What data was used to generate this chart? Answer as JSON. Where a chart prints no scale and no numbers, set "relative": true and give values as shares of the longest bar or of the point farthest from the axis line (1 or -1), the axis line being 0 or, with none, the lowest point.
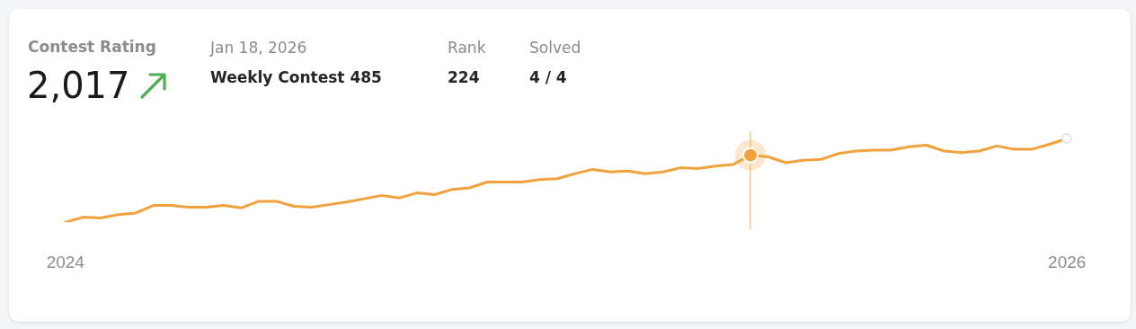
{
  "chart_data": {
    "type": "line",
    "title": "Contest Rating",
    "annotations": [
      "2,017",
      "Jan 18, 2026",
      "Weekly Contest 485",
      "Rank",
      "224",
      "Solved",
      "4 / 4"
    ],
    "categories": [
      "2024",
      null,
      null,
      null,
      null,
      null,
      null,
      null,
      null,
      null,
      null,
      null,
      null,
      null,
      null,
      null,
      null,
      null,
      null,
      null,
      null,
      null,
      null,
      null,
      null,
      null,
      null,
      null,
      null,
      null,
      null,
      null,
      null,
      null,
      null,
      null,
      null,
      null,
      null,
      null,
      null,
      null,
      null,
      null,
      null,
      null,
      null,
      null,
      null,
      null,
      null,
      null,
      null,
      null,
      null,
      null,
      null,
      "2026"
    ],
    "relative": true,
    "series": [
      {
        "color": "#f2a23c",
        "values": [
          0,
          0.06,
          0.05,
          0.09,
          0.11,
          0.2,
          0.2,
          0.18,
          0.18,
          0.2,
          0.17,
          0.25,
          0.25,
          0.19,
          0.18,
          0.21,
          0.24,
          0.28,
          0.32,
          0.29,
          0.35,
          0.33,
          0.39,
          0.41,
          0.48,
          0.48,
          0.48,
          0.51,
          0.52,
          0.58,
          0.63,
          0.6,
          0.61,
          0.58,
          0.6,
          0.65,
          0.64,
          0.67,
          0.69,
          0.8,
          0.78,
          0.71,
          0.74,
          0.75,
          0.82,
          0.85,
          0.86,
          0.86,
          0.9,
          0.92,
          0.85,
          0.83,
          0.85,
          0.91,
          0.87,
          0.87,
          0.93,
          1
        ]
      }
    ]
  }
}
